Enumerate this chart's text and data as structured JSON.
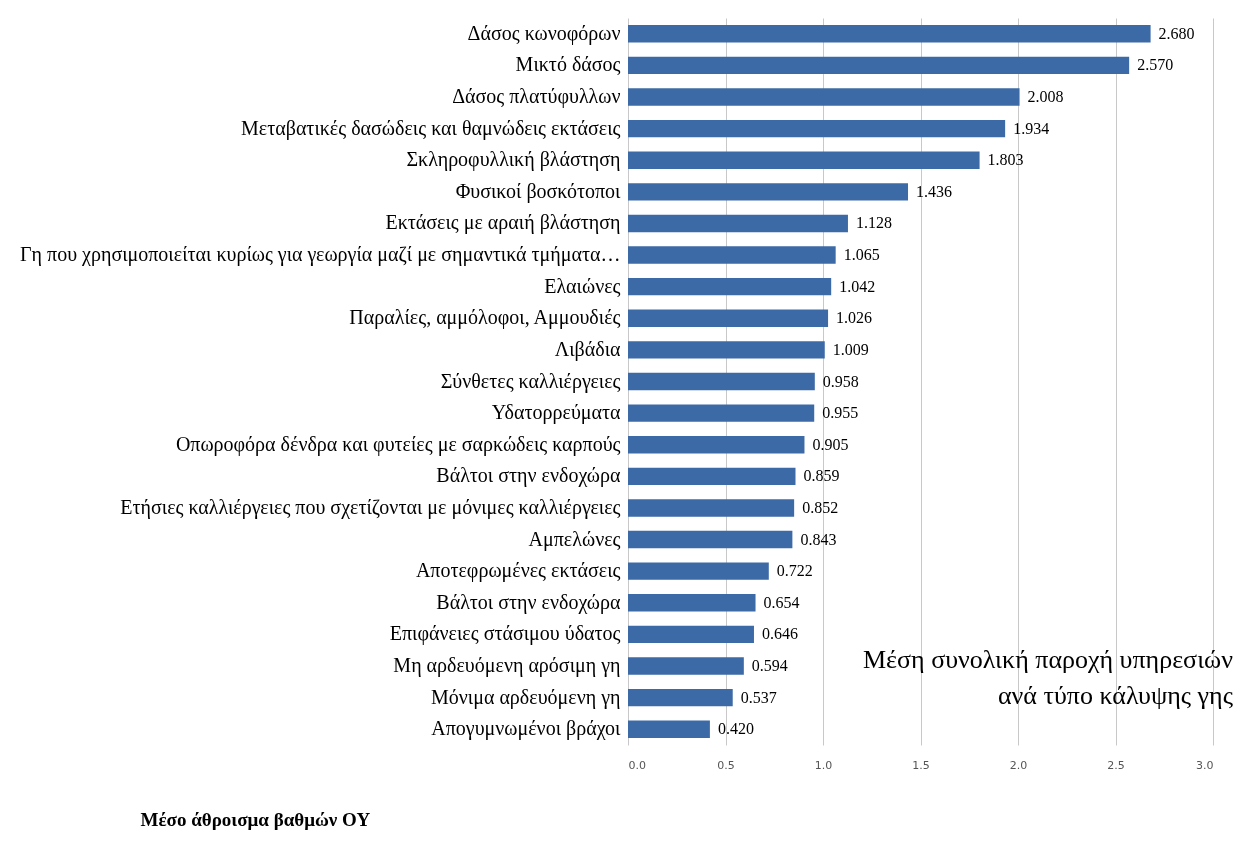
{
  "chart_data": {
    "type": "bar",
    "orientation": "horizontal",
    "title": "Μέση συνολική παροχή υπηρεσιών\nανά τύπο κάλυψης γης",
    "xlabel": "Μέσο άθροισμα βαθμών ΟΥ",
    "categories": [
      "Δάσος κωνοφόρων",
      "Μικτό δάσος",
      "Δάσος πλατύφυλλων",
      "Μεταβατικές δασώδεις και θαμνώδεις εκτάσεις",
      "Σκληροφυλλική βλάστηση",
      "Φυσικοί βοσκότοποι",
      "Εκτάσεις με αραιή βλάστηση",
      "Γη που χρησιμοποιείται κυρίως για γεωργία μαζί με σημαντικά τμήματα…",
      "Ελαιώνες",
      "Παραλίες, αμμόλοφοι, Αμμουδιές",
      "Λιβάδια",
      "Σύνθετες καλλιέργειες",
      "Υδατορρεύματα",
      "Οπωροφόρα  δένδρα και φυτείες με σαρκώδεις καρπούς",
      "Βάλτοι στην ενδοχώρα",
      "Ετήσιες καλλιέργειες που σχετίζονται με μόνιμες καλλιέργειες",
      "Αμπελώνες",
      "Αποτεφρωμένες εκτάσεις",
      "Βάλτοι στην ενδοχώρα",
      "Επιφάνειες στάσιμου ύδατος",
      "Μη αρδευόμενη αρόσιμη γη",
      "Μόνιμα αρδευόμενη γη",
      "Απογυμνωμένοι βράχοι"
    ],
    "values": [
      2.68,
      2.57,
      2.008,
      1.934,
      1.803,
      1.436,
      1.128,
      1.065,
      1.042,
      1.026,
      1.009,
      0.958,
      0.955,
      0.905,
      0.859,
      0.852,
      0.843,
      0.722,
      0.654,
      0.646,
      0.594,
      0.537,
      0.42
    ],
    "value_labels": [
      "2.680",
      "2.570",
      "2.008",
      "1.934",
      "1.803",
      "1.436",
      "1.128",
      "1.065",
      "1.042",
      "1.026",
      "1.009",
      "0.958",
      "0.955",
      "0.905",
      "0.859",
      "0.852",
      "0.843",
      "0.722",
      "0.654",
      "0.646",
      "0.594",
      "0.537",
      "0.420"
    ],
    "color": "#3c6aa6",
    "xlim": [
      0,
      3
    ],
    "xticks": [
      {
        "value": 0,
        "label": "0.0"
      },
      {
        "value": 0.5,
        "label": "0.5"
      },
      {
        "value": 1,
        "label": "1.0"
      },
      {
        "value": 1.5,
        "label": "1.5"
      },
      {
        "value": 2,
        "label": "2.0"
      },
      {
        "value": 2.5,
        "label": "2.5"
      },
      {
        "value": 3,
        "label": "3.0"
      }
    ],
    "grid": "x"
  }
}
